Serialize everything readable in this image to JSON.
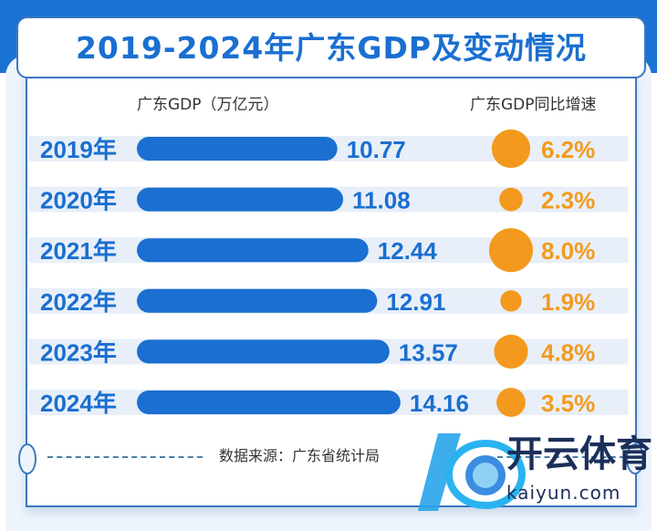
{
  "title": "2019-2024年广东GDP及变动情况",
  "headers": {
    "gdp": "广东GDP（万亿元）",
    "growth": "广东GDP同比增速"
  },
  "footer": {
    "source": "数据来源：广东省统计局"
  },
  "watermark": {
    "cn": "开云体育",
    "en": "kaiyun.com"
  },
  "colors": {
    "bar": "#1a6fd0",
    "circle": "#f39a1e",
    "stripe": "#e8eff8"
  },
  "chart_data": {
    "type": "bar",
    "title": "2019-2024年广东GDP及变动情况",
    "categories": [
      "2019年",
      "2020年",
      "2021年",
      "2022年",
      "2023年",
      "2024年"
    ],
    "series": [
      {
        "name": "广东GDP（万亿元）",
        "values": [
          10.77,
          11.08,
          12.44,
          12.91,
          13.57,
          14.16
        ],
        "labels": [
          "10.77",
          "11.08",
          "12.44",
          "12.91",
          "13.57",
          "14.16"
        ]
      },
      {
        "name": "广东GDP同比增速",
        "values": [
          6.2,
          2.3,
          8.0,
          1.9,
          4.8,
          3.5
        ],
        "labels": [
          "6.2%",
          "2.3%",
          "8.0%",
          "1.9%",
          "4.8%",
          "3.5%"
        ]
      }
    ]
  }
}
